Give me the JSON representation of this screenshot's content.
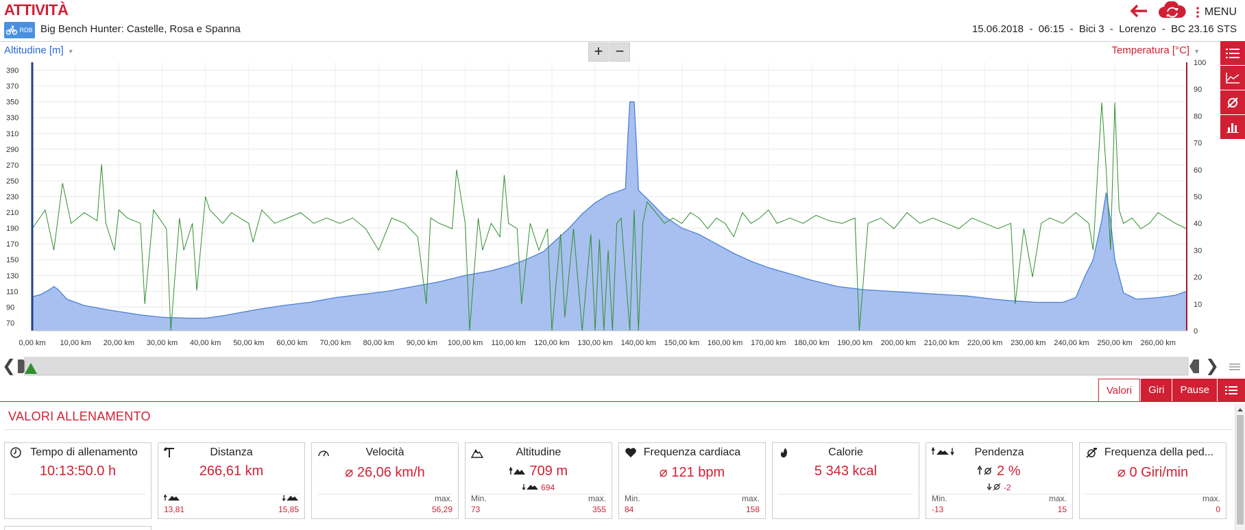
{
  "header": {
    "title": "ATTIVITÀ",
    "sport_badge": "RDB",
    "activity_name": "Big Bench Hunter: Castelle, Rosa e Spanna",
    "menu_label": "MENU",
    "meta": "15.06.2018  -  06:15  -  Bici 3  -  Lorenzo  -  BC 23.16 STS",
    "accent_color": "#d11f33"
  },
  "chart_controls": {
    "left_axis_title": "Altitudine [m]",
    "right_axis_title": "Temperatura [°C]",
    "zoom_in": "+",
    "zoom_out": "−"
  },
  "chart_data": {
    "type": "area",
    "x_unit": "km",
    "x_ticks": [
      "0,00 km",
      "10,00 km",
      "20,00 km",
      "30,00 km",
      "40,00 km",
      "50,00 km",
      "60,00 km",
      "70,00 km",
      "80,00 km",
      "90,00 km",
      "100,00 km",
      "110,00 km",
      "120,00 km",
      "130,00 km",
      "140,00 km",
      "150,00 km",
      "160,00 km",
      "170,00 km",
      "180,00 km",
      "190,00 km",
      "200,00 km",
      "210,00 km",
      "220,00 km",
      "230,00 km",
      "240,00 km",
      "250,00 km",
      "260,00 km"
    ],
    "xlim": [
      0,
      266.61
    ],
    "y_left_ticks": [
      70,
      90,
      110,
      130,
      150,
      170,
      190,
      210,
      230,
      250,
      270,
      290,
      310,
      330,
      350,
      370,
      390
    ],
    "y_left_lim": [
      60,
      400
    ],
    "y_right_ticks": [
      0,
      10,
      20,
      30,
      40,
      50,
      60,
      70,
      80,
      90,
      100
    ],
    "y_right_lim": [
      0,
      100
    ],
    "grid": true,
    "series": [
      {
        "color": "#4a7fd8",
        "axis": "left",
        "points": [
          [
            0,
            103
          ],
          [
            2,
            106
          ],
          [
            4,
            112
          ],
          [
            5,
            116
          ],
          [
            6,
            112
          ],
          [
            8,
            100
          ],
          [
            12,
            92
          ],
          [
            18,
            86
          ],
          [
            25,
            80
          ],
          [
            30,
            77
          ],
          [
            36,
            76
          ],
          [
            40,
            76
          ],
          [
            44,
            79
          ],
          [
            48,
            83
          ],
          [
            52,
            87
          ],
          [
            58,
            92
          ],
          [
            64,
            96
          ],
          [
            70,
            102
          ],
          [
            76,
            106
          ],
          [
            82,
            110
          ],
          [
            88,
            116
          ],
          [
            94,
            122
          ],
          [
            100,
            130
          ],
          [
            106,
            136
          ],
          [
            110,
            142
          ],
          [
            114,
            150
          ],
          [
            118,
            160
          ],
          [
            121,
            175
          ],
          [
            124,
            190
          ],
          [
            127,
            208
          ],
          [
            130,
            222
          ],
          [
            133,
            232
          ],
          [
            136,
            238
          ],
          [
            137,
            240
          ],
          [
            137.5,
            300
          ],
          [
            138,
            350
          ],
          [
            139,
            350
          ],
          [
            139.5,
            300
          ],
          [
            140,
            238
          ],
          [
            143,
            222
          ],
          [
            146,
            205
          ],
          [
            150,
            190
          ],
          [
            154,
            182
          ],
          [
            158,
            170
          ],
          [
            162,
            158
          ],
          [
            166,
            148
          ],
          [
            170,
            140
          ],
          [
            175,
            132
          ],
          [
            180,
            124
          ],
          [
            186,
            116
          ],
          [
            192,
            112
          ],
          [
            198,
            110
          ],
          [
            204,
            108
          ],
          [
            210,
            106
          ],
          [
            216,
            104
          ],
          [
            222,
            100
          ],
          [
            226,
            98
          ],
          [
            232,
            96
          ],
          [
            238,
            96
          ],
          [
            241,
            102
          ],
          [
            243,
            128
          ],
          [
            245,
            150
          ],
          [
            247,
            200
          ],
          [
            248,
            235
          ],
          [
            249,
            200
          ],
          [
            250,
            150
          ],
          [
            252,
            108
          ],
          [
            255,
            100
          ],
          [
            260,
            102
          ],
          [
            264,
            105
          ],
          [
            266.61,
            110
          ]
        ]
      },
      {
        "color": "#2f8f2f",
        "axis": "right",
        "points": [
          [
            0,
            38
          ],
          [
            3,
            45
          ],
          [
            5,
            30
          ],
          [
            7,
            55
          ],
          [
            9,
            40
          ],
          [
            12,
            44
          ],
          [
            15,
            41
          ],
          [
            16,
            62
          ],
          [
            17,
            40
          ],
          [
            19,
            30
          ],
          [
            20,
            45
          ],
          [
            22,
            42
          ],
          [
            25,
            40
          ],
          [
            26,
            10
          ],
          [
            28,
            45
          ],
          [
            31,
            38
          ],
          [
            32,
            0
          ],
          [
            34,
            42
          ],
          [
            35,
            30
          ],
          [
            37,
            40
          ],
          [
            38,
            15
          ],
          [
            40,
            50
          ],
          [
            41,
            45
          ],
          [
            44,
            40
          ],
          [
            46,
            44
          ],
          [
            48,
            42
          ],
          [
            50,
            40
          ],
          [
            51,
            33
          ],
          [
            53,
            45
          ],
          [
            56,
            40
          ],
          [
            59,
            42
          ],
          [
            62,
            44
          ],
          [
            65,
            40
          ],
          [
            68,
            42
          ],
          [
            71,
            40
          ],
          [
            74,
            42
          ],
          [
            77,
            38
          ],
          [
            80,
            30
          ],
          [
            83,
            42
          ],
          [
            86,
            40
          ],
          [
            89,
            35
          ],
          [
            91,
            10
          ],
          [
            92,
            42
          ],
          [
            94,
            40
          ],
          [
            97,
            38
          ],
          [
            98,
            60
          ],
          [
            100,
            40
          ],
          [
            101,
            0
          ],
          [
            103,
            42
          ],
          [
            104,
            30
          ],
          [
            106,
            40
          ],
          [
            108,
            35
          ],
          [
            109,
            58
          ],
          [
            110,
            40
          ],
          [
            112,
            38
          ],
          [
            113,
            10
          ],
          [
            115,
            40
          ],
          [
            117,
            30
          ],
          [
            119,
            38
          ],
          [
            120,
            0
          ],
          [
            122,
            36
          ],
          [
            123,
            5
          ],
          [
            125,
            38
          ],
          [
            127,
            0
          ],
          [
            129,
            36
          ],
          [
            130,
            0
          ],
          [
            131,
            34
          ],
          [
            132,
            0
          ],
          [
            133,
            30
          ],
          [
            134,
            0
          ],
          [
            135,
            40
          ],
          [
            136,
            42
          ],
          [
            138,
            0
          ],
          [
            139,
            45
          ],
          [
            140,
            0
          ],
          [
            141,
            40
          ],
          [
            142,
            48
          ],
          [
            144,
            44
          ],
          [
            146,
            40
          ],
          [
            148,
            42
          ],
          [
            150,
            40
          ],
          [
            152,
            44
          ],
          [
            154,
            42
          ],
          [
            156,
            38
          ],
          [
            158,
            42
          ],
          [
            160,
            40
          ],
          [
            162,
            35
          ],
          [
            164,
            44
          ],
          [
            166,
            40
          ],
          [
            168,
            42
          ],
          [
            170,
            45
          ],
          [
            172,
            40
          ],
          [
            175,
            42
          ],
          [
            178,
            40
          ],
          [
            181,
            43
          ],
          [
            184,
            41
          ],
          [
            187,
            40
          ],
          [
            190,
            42
          ],
          [
            191,
            0
          ],
          [
            193,
            40
          ],
          [
            196,
            42
          ],
          [
            199,
            38
          ],
          [
            202,
            44
          ],
          [
            205,
            40
          ],
          [
            208,
            42
          ],
          [
            211,
            40
          ],
          [
            214,
            38
          ],
          [
            217,
            42
          ],
          [
            220,
            40
          ],
          [
            223,
            38
          ],
          [
            226,
            40
          ],
          [
            227,
            10
          ],
          [
            229,
            38
          ],
          [
            231,
            20
          ],
          [
            233,
            40
          ],
          [
            235,
            42
          ],
          [
            238,
            40
          ],
          [
            241,
            44
          ],
          [
            244,
            40
          ],
          [
            245,
            30
          ],
          [
            246,
            58
          ],
          [
            247,
            85
          ],
          [
            248,
            60
          ],
          [
            249,
            30
          ],
          [
            250,
            85
          ],
          [
            251,
            45
          ],
          [
            252,
            40
          ],
          [
            254,
            42
          ],
          [
            256,
            38
          ],
          [
            258,
            40
          ],
          [
            260,
            44
          ],
          [
            262,
            42
          ],
          [
            264,
            40
          ],
          [
            266.61,
            38
          ]
        ]
      }
    ]
  },
  "range_slider": {
    "left_arrow": "❮",
    "right_arrow": "❯"
  },
  "tabs": [
    {
      "label": "Valori",
      "active": true
    },
    {
      "label": "Giri",
      "active": false
    },
    {
      "label": "Pause",
      "active": false
    }
  ],
  "section_title": "VALORI ALLENAMENTO",
  "cards": {
    "tempo": {
      "icon": "clock-icon",
      "title": "Tempo di allenamento",
      "value": "10:13:50.0 h"
    },
    "distanza": {
      "icon": "signpost-icon",
      "title": "Distanza",
      "value": "266,61 km",
      "up_value": "13,81",
      "down_value": "15,85"
    },
    "velocita": {
      "icon": "speedometer-icon",
      "title": "Velocità",
      "value": "⌀ 26,06 km/h",
      "max_label": "max.",
      "max_value": "56,29"
    },
    "altitudine": {
      "icon": "mountain-icon",
      "title": "Altitudine",
      "value": "709 m",
      "down_value": "694",
      "min_label": "Min.",
      "min_value": "73",
      "max_label": "max.",
      "max_value": "355"
    },
    "frequenza": {
      "icon": "heart-icon",
      "title": "Frequenza cardiaca",
      "value": "⌀ 121 bpm",
      "min_label": "Min.",
      "min_value": "84",
      "max_label": "max.",
      "max_value": "158"
    },
    "calorie": {
      "icon": "flame-icon",
      "title": "Calorie",
      "value": "5 343 kcal"
    },
    "pendenza": {
      "icon": "slope-icon",
      "title": "Pendenza",
      "value": "2 %",
      "down_value": "-2",
      "min_label": "Min.",
      "min_value": "-13",
      "max_label": "max.",
      "max_value": "15"
    },
    "cadenza": {
      "icon": "pedal-icon",
      "title": "Frequenza della ped...",
      "value": "⌀ 0 Giri/min",
      "max_label": "max.",
      "max_value": "0"
    }
  }
}
